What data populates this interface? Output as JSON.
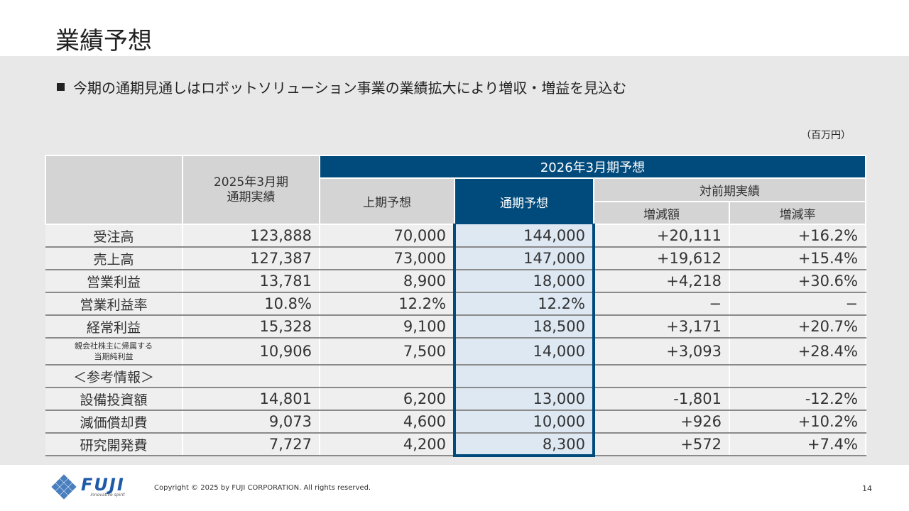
{
  "title": "業績予想",
  "bullet": "今期の通期見通しはロボットソリューション事業の業績拡大により増収・増益を見込む",
  "unit": "（百万円）",
  "headers": {
    "prev_year": "2025年3月期\n通期実績",
    "forecast_group": "2026年3月期予想",
    "first_half": "上期予想",
    "full_year": "通期予想",
    "vs_prev": "対前期実績",
    "change_amount": "増減額",
    "change_rate": "増減率"
  },
  "rows": [
    {
      "label": "受注高",
      "prev": "123,888",
      "h1": "70,000",
      "fy": "144,000",
      "diff": "+20,111",
      "rate": "+16.2%"
    },
    {
      "label": "売上高",
      "prev": "127,387",
      "h1": "73,000",
      "fy": "147,000",
      "diff": "+19,612",
      "rate": "+15.4%"
    },
    {
      "label": "営業利益",
      "prev": "13,781",
      "h1": "8,900",
      "fy": "18,000",
      "diff": "+4,218",
      "rate": "+30.6%"
    },
    {
      "label": "営業利益率",
      "prev": "10.8%",
      "h1": "12.2%",
      "fy": "12.2%",
      "diff": "−",
      "rate": "−"
    },
    {
      "label": "経常利益",
      "prev": "15,328",
      "h1": "9,100",
      "fy": "18,500",
      "diff": "+3,171",
      "rate": "+20.7%"
    },
    {
      "label": "親会社株主に帰属する\n当期純利益",
      "prev": "10,906",
      "h1": "7,500",
      "fy": "14,000",
      "diff": "+3,093",
      "rate": "+28.4%",
      "small": true
    }
  ],
  "reference_label": "＜参考情報＞",
  "ref_rows": [
    {
      "label": "設備投資額",
      "prev": "14,801",
      "h1": "6,200",
      "fy": "13,000",
      "diff": "-1,801",
      "rate": "-12.2%"
    },
    {
      "label": "減価償却費",
      "prev": "9,073",
      "h1": "4,600",
      "fy": "10,000",
      "diff": "+926",
      "rate": "+10.2%"
    },
    {
      "label": "研究開発費",
      "prev": "7,727",
      "h1": "4,200",
      "fy": "8,300",
      "diff": "+572",
      "rate": "+7.4%"
    }
  ],
  "footer": {
    "logo_text": "FUJI",
    "logo_sub": "innovative spirit",
    "copyright": "Copyright © 2025 by FUJI CORPORATION. All rights reserved.",
    "page_number": "14"
  },
  "colors": {
    "accent": "#004a7c",
    "highlight": "#dde8f3",
    "header_gray": "#d4d4d4",
    "background": "#e8e8e8"
  }
}
